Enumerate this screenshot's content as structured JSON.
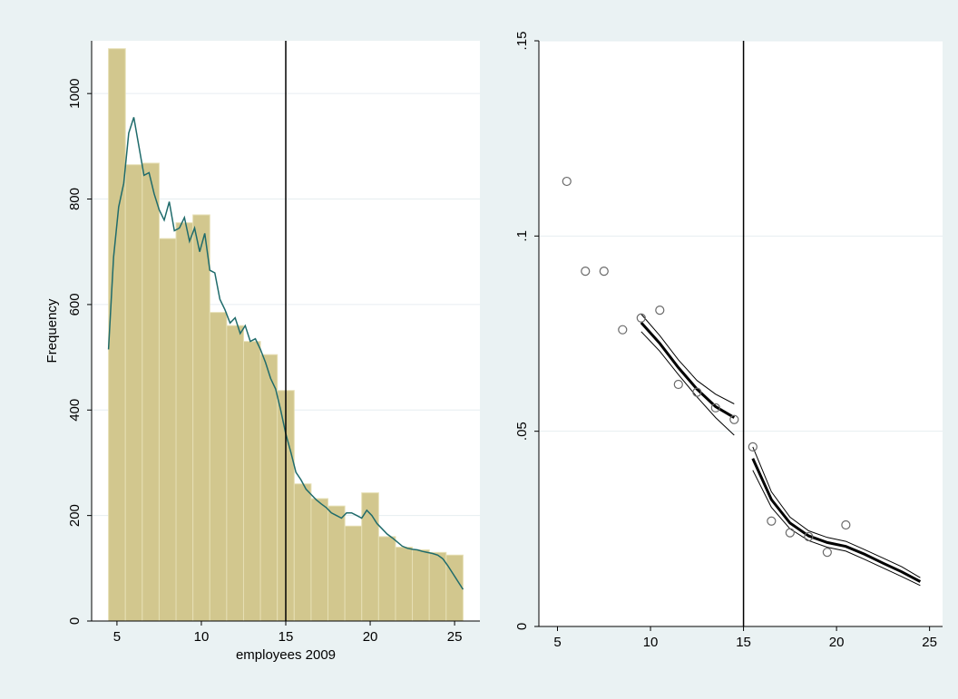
{
  "chart_data": [
    {
      "type": "bar",
      "xlabel": "employees 2009",
      "ylabel": "Frequency",
      "xlim": [
        3.5,
        26.5
      ],
      "ylim": [
        0,
        1100
      ],
      "x_ticks": [
        5,
        10,
        15,
        20,
        25
      ],
      "y_ticks": [
        0,
        200,
        400,
        600,
        800,
        1000
      ],
      "bin_width": 1,
      "bins": [
        5,
        6,
        7,
        8,
        9,
        10,
        11,
        12,
        13,
        14,
        15,
        16,
        17,
        18,
        19,
        20,
        21,
        22,
        23,
        24,
        25
      ],
      "values": [
        1085,
        865,
        868,
        725,
        755,
        770,
        585,
        560,
        530,
        505,
        437,
        260,
        232,
        218,
        180,
        243,
        160,
        140,
        135,
        130,
        125
      ],
      "density_line": {
        "x": [
          4.5,
          4.8,
          5.1,
          5.4,
          5.7,
          6.0,
          6.3,
          6.6,
          6.9,
          7.2,
          7.5,
          7.8,
          8.1,
          8.4,
          8.7,
          9.0,
          9.3,
          9.6,
          9.9,
          10.2,
          10.5,
          10.8,
          11.1,
          11.4,
          11.7,
          12.0,
          12.3,
          12.6,
          12.9,
          13.2,
          13.5,
          13.8,
          14.1,
          14.4,
          14.7,
          15.0,
          15.3,
          15.6,
          15.9,
          16.2,
          16.5,
          16.8,
          17.1,
          17.4,
          17.7,
          18.0,
          18.3,
          18.6,
          18.9,
          19.2,
          19.5,
          19.8,
          20.1,
          20.4,
          20.7,
          21.0,
          21.3,
          21.6,
          21.9,
          22.2,
          22.5,
          22.8,
          23.1,
          23.4,
          23.7,
          24.0,
          24.3,
          24.6,
          24.9,
          25.2,
          25.5
        ],
        "y": [
          515,
          690,
          785,
          830,
          925,
          955,
          900,
          845,
          850,
          810,
          780,
          760,
          795,
          740,
          745,
          765,
          720,
          745,
          700,
          735,
          665,
          660,
          610,
          590,
          565,
          575,
          545,
          560,
          530,
          535,
          515,
          490,
          460,
          440,
          400,
          355,
          320,
          282,
          268,
          250,
          240,
          230,
          222,
          215,
          205,
          200,
          195,
          205,
          205,
          200,
          195,
          210,
          200,
          185,
          175,
          165,
          158,
          150,
          142,
          138,
          136,
          135,
          132,
          130,
          128,
          125,
          118,
          105,
          90,
          75,
          60
        ]
      },
      "vline": 15
    },
    {
      "type": "scatter",
      "xlabel": "",
      "ylabel": "",
      "xlim": [
        4,
        25.7
      ],
      "ylim": [
        0,
        0.15
      ],
      "x_ticks": [
        5,
        10,
        15,
        20,
        25
      ],
      "x_tick_labels": [
        "5",
        "10",
        "15",
        "20",
        "25"
      ],
      "y_ticks": [
        0,
        0.05,
        0.1,
        0.15
      ],
      "y_tick_labels": [
        "0",
        ".05",
        ".1",
        ".15"
      ],
      "points": {
        "x": [
          5.5,
          6.5,
          7.5,
          8.5,
          9.5,
          10.5,
          11.5,
          12.5,
          13.5,
          14.5,
          15.5,
          16.5,
          17.5,
          18.5,
          19.5,
          20.5
        ],
        "y": [
          0.114,
          0.091,
          0.091,
          0.076,
          0.079,
          0.081,
          0.062,
          0.06,
          0.056,
          0.053,
          0.046,
          0.027,
          0.024,
          0.023,
          0.019,
          0.026
        ]
      },
      "fits": [
        {
          "x": [
            9.5,
            10.5,
            11.5,
            12.5,
            13.5,
            14.5
          ],
          "y": [
            0.0778,
            0.0725,
            0.0663,
            0.0608,
            0.0563,
            0.0535
          ],
          "ci_lower": [
            0.0755,
            0.0705,
            0.0645,
            0.0588,
            0.0535,
            0.049
          ],
          "ci_upper": [
            0.08,
            0.0745,
            0.0683,
            0.063,
            0.0595,
            0.057
          ]
        },
        {
          "x": [
            15.5,
            16.5,
            17.5,
            18.5,
            19.5,
            20.5,
            21.5,
            22.5,
            23.5,
            24.5
          ],
          "y": [
            0.043,
            0.0325,
            0.0265,
            0.0232,
            0.0215,
            0.0205,
            0.0185,
            0.0162,
            0.014,
            0.0115
          ],
          "ci_lower": [
            0.04,
            0.0305,
            0.025,
            0.022,
            0.0203,
            0.0193,
            0.0172,
            0.015,
            0.0128,
            0.0105
          ],
          "ci_upper": [
            0.046,
            0.0345,
            0.028,
            0.0245,
            0.0228,
            0.0218,
            0.0197,
            0.0175,
            0.0153,
            0.0125
          ]
        }
      ],
      "vline": 15
    }
  ]
}
